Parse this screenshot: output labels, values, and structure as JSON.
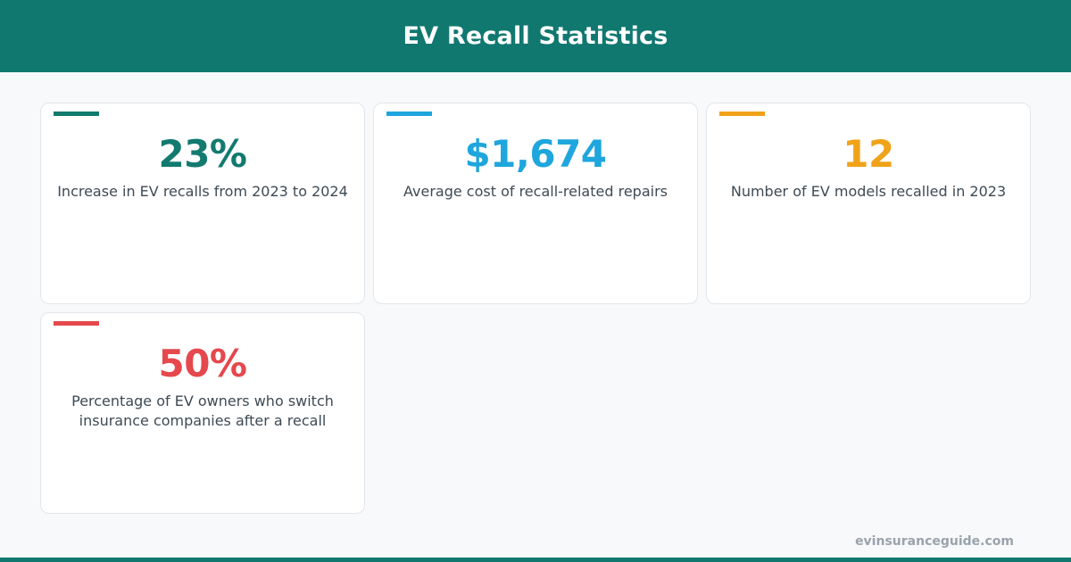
{
  "header": {
    "title": "EV Recall Statistics"
  },
  "cards": [
    {
      "value": "23%",
      "description": "Increase in EV recalls from 2023 to 2024",
      "color": "#127a6f"
    },
    {
      "value": "$1,674",
      "description": "Average cost of recall-related repairs",
      "color": "#1ea6dd"
    },
    {
      "value": "12",
      "description": "Number of EV models recalled in 2023",
      "color": "#f0a219"
    },
    {
      "value": "50%",
      "description": "Percentage of EV owners who switch insurance companies after a recall",
      "color": "#e5484d"
    }
  ],
  "footer": {
    "site": "evinsuranceguide.com"
  },
  "colors": {
    "brand": "#117870",
    "background": "#f7f9fb",
    "text": "#3e4a55"
  }
}
